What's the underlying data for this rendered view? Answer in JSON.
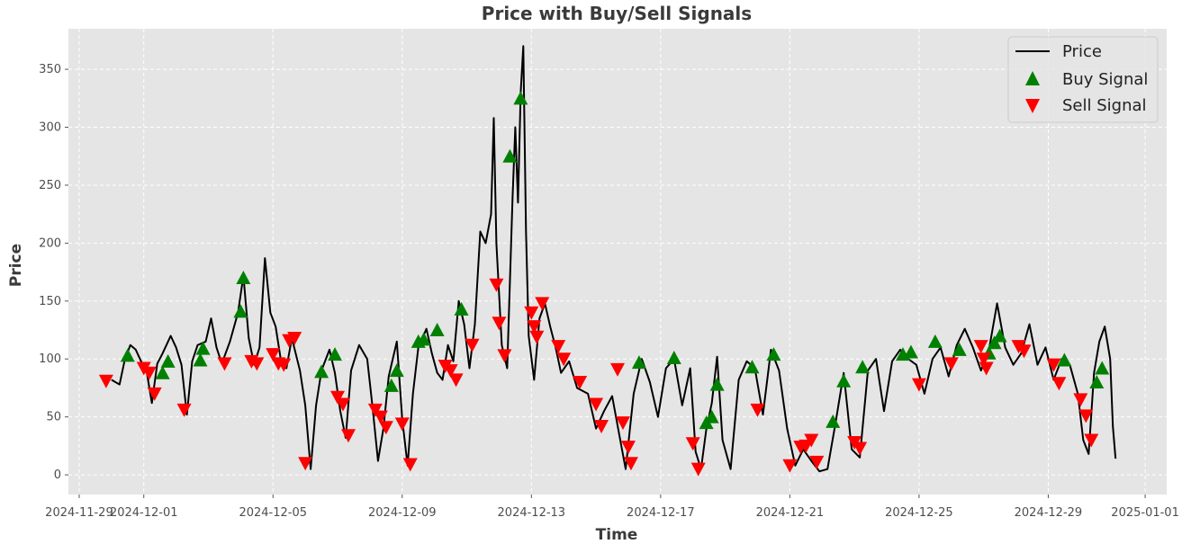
{
  "chart_data": {
    "type": "line",
    "title": "Price with Buy/Sell Signals",
    "xlabel": "Time",
    "ylabel": "Price",
    "xlim": [
      "2024-11-28T16:00",
      "2025-01-01T16:00"
    ],
    "ylim": [
      -17,
      385
    ],
    "x_ticks": [
      "2024-11-29",
      "2024-12-01",
      "2024-12-05",
      "2024-12-09",
      "2024-12-13",
      "2024-12-17",
      "2024-12-21",
      "2024-12-25",
      "2024-12-29",
      "2025-01-01"
    ],
    "y_ticks": [
      0,
      50,
      100,
      150,
      200,
      250,
      300,
      350
    ],
    "grid": true,
    "legend_position": "top-right",
    "colors": {
      "price": "#000000",
      "buy": "#008000",
      "sell": "#ff0000",
      "background": "#e5e5e5",
      "grid": "#ffffff"
    },
    "series": [
      {
        "name": "Price",
        "type": "line",
        "points": [
          [
            "2024-11-30T00:00",
            82
          ],
          [
            "2024-11-30T06:00",
            78
          ],
          [
            "2024-11-30T10:00",
            100
          ],
          [
            "2024-11-30T14:00",
            112
          ],
          [
            "2024-11-30T18:00",
            108
          ],
          [
            "2024-11-30T22:00",
            98
          ],
          [
            "2024-12-01T02:00",
            90
          ],
          [
            "2024-12-01T06:00",
            62
          ],
          [
            "2024-12-01T10:00",
            96
          ],
          [
            "2024-12-01T14:00",
            105
          ],
          [
            "2024-12-01T20:00",
            120
          ],
          [
            "2024-12-02T00:00",
            110
          ],
          [
            "2024-12-02T04:00",
            95
          ],
          [
            "2024-12-02T08:00",
            52
          ],
          [
            "2024-12-02T12:00",
            98
          ],
          [
            "2024-12-02T16:00",
            112
          ],
          [
            "2024-12-02T22:00",
            115
          ],
          [
            "2024-12-03T02:00",
            135
          ],
          [
            "2024-12-03T06:00",
            110
          ],
          [
            "2024-12-03T10:00",
            96
          ],
          [
            "2024-12-03T16:00",
            115
          ],
          [
            "2024-12-03T22:00",
            140
          ],
          [
            "2024-12-04T02:00",
            172
          ],
          [
            "2024-12-04T06:00",
            118
          ],
          [
            "2024-12-04T10:00",
            95
          ],
          [
            "2024-12-04T14:00",
            110
          ],
          [
            "2024-12-04T18:00",
            187
          ],
          [
            "2024-12-04T22:00",
            140
          ],
          [
            "2024-12-05T02:00",
            128
          ],
          [
            "2024-12-05T06:00",
            98
          ],
          [
            "2024-12-05T10:00",
            92
          ],
          [
            "2024-12-05T14:00",
            118
          ],
          [
            "2024-12-05T20:00",
            90
          ],
          [
            "2024-12-06T00:00",
            60
          ],
          [
            "2024-12-06T04:00",
            5
          ],
          [
            "2024-12-06T08:00",
            60
          ],
          [
            "2024-12-06T12:00",
            90
          ],
          [
            "2024-12-06T18:00",
            108
          ],
          [
            "2024-12-06T22:00",
            88
          ],
          [
            "2024-12-07T02:00",
            55
          ],
          [
            "2024-12-07T06:00",
            32
          ],
          [
            "2024-12-07T10:00",
            90
          ],
          [
            "2024-12-07T16:00",
            112
          ],
          [
            "2024-12-07T22:00",
            100
          ],
          [
            "2024-12-08T02:00",
            58
          ],
          [
            "2024-12-08T06:00",
            12
          ],
          [
            "2024-12-08T10:00",
            40
          ],
          [
            "2024-12-08T14:00",
            85
          ],
          [
            "2024-12-08T20:00",
            115
          ],
          [
            "2024-12-09T00:00",
            48
          ],
          [
            "2024-12-09T04:00",
            8
          ],
          [
            "2024-12-09T08:00",
            70
          ],
          [
            "2024-12-09T12:00",
            110
          ],
          [
            "2024-12-09T18:00",
            126
          ],
          [
            "2024-12-09T22:00",
            105
          ],
          [
            "2024-12-10T02:00",
            88
          ],
          [
            "2024-12-10T06:00",
            82
          ],
          [
            "2024-12-10T10:00",
            112
          ],
          [
            "2024-12-10T14:00",
            98
          ],
          [
            "2024-12-10T18:00",
            150
          ],
          [
            "2024-12-10T22:00",
            130
          ],
          [
            "2024-12-11T02:00",
            92
          ],
          [
            "2024-12-11T06:00",
            130
          ],
          [
            "2024-12-11T10:00",
            210
          ],
          [
            "2024-12-11T14:00",
            200
          ],
          [
            "2024-12-11T18:00",
            225
          ],
          [
            "2024-12-11T20:00",
            308
          ],
          [
            "2024-12-11T22:00",
            200
          ],
          [
            "2024-12-12T02:00",
            112
          ],
          [
            "2024-12-12T06:00",
            92
          ],
          [
            "2024-12-12T10:00",
            240
          ],
          [
            "2024-12-12T12:00",
            300
          ],
          [
            "2024-12-12T14:00",
            235
          ],
          [
            "2024-12-12T16:00",
            330
          ],
          [
            "2024-12-12T18:00",
            370
          ],
          [
            "2024-12-12T20:00",
            210
          ],
          [
            "2024-12-12T22:00",
            120
          ],
          [
            "2024-12-13T02:00",
            82
          ],
          [
            "2024-12-13T06:00",
            135
          ],
          [
            "2024-12-13T10:00",
            148
          ],
          [
            "2024-12-13T14:00",
            128
          ],
          [
            "2024-12-13T18:00",
            110
          ],
          [
            "2024-12-13T22:00",
            88
          ],
          [
            "2024-12-14T04:00",
            98
          ],
          [
            "2024-12-14T10:00",
            75
          ],
          [
            "2024-12-14T18:00",
            70
          ],
          [
            "2024-12-15T00:00",
            40
          ],
          [
            "2024-12-15T06:00",
            55
          ],
          [
            "2024-12-15T12:00",
            68
          ],
          [
            "2024-12-15T18:00",
            30
          ],
          [
            "2024-12-15T22:00",
            5
          ],
          [
            "2024-12-16T04:00",
            70
          ],
          [
            "2024-12-16T10:00",
            100
          ],
          [
            "2024-12-16T16:00",
            80
          ],
          [
            "2024-12-16T22:00",
            50
          ],
          [
            "2024-12-17T04:00",
            92
          ],
          [
            "2024-12-17T10:00",
            100
          ],
          [
            "2024-12-17T16:00",
            60
          ],
          [
            "2024-12-17T22:00",
            92
          ],
          [
            "2024-12-18T02:00",
            20
          ],
          [
            "2024-12-18T06:00",
            5
          ],
          [
            "2024-12-18T10:00",
            40
          ],
          [
            "2024-12-18T14:00",
            62
          ],
          [
            "2024-12-18T18:00",
            102
          ],
          [
            "2024-12-18T22:00",
            30
          ],
          [
            "2024-12-19T04:00",
            5
          ],
          [
            "2024-12-19T10:00",
            82
          ],
          [
            "2024-12-19T16:00",
            98
          ],
          [
            "2024-12-19T22:00",
            92
          ],
          [
            "2024-12-20T04:00",
            52
          ],
          [
            "2024-12-20T10:00",
            108
          ],
          [
            "2024-12-20T16:00",
            90
          ],
          [
            "2024-12-20T22:00",
            40
          ],
          [
            "2024-12-21T04:00",
            8
          ],
          [
            "2024-12-21T10:00",
            22
          ],
          [
            "2024-12-21T16:00",
            12
          ],
          [
            "2024-12-21T22:00",
            3
          ],
          [
            "2024-12-22T04:00",
            5
          ],
          [
            "2024-12-22T10:00",
            45
          ],
          [
            "2024-12-22T16:00",
            88
          ],
          [
            "2024-12-22T22:00",
            22
          ],
          [
            "2024-12-23T04:00",
            15
          ],
          [
            "2024-12-23T10:00",
            90
          ],
          [
            "2024-12-23T16:00",
            100
          ],
          [
            "2024-12-23T22:00",
            55
          ],
          [
            "2024-12-24T04:00",
            98
          ],
          [
            "2024-12-24T10:00",
            108
          ],
          [
            "2024-12-24T16:00",
            100
          ],
          [
            "2024-12-24T22:00",
            95
          ],
          [
            "2024-12-25T04:00",
            70
          ],
          [
            "2024-12-25T10:00",
            100
          ],
          [
            "2024-12-25T16:00",
            110
          ],
          [
            "2024-12-25T22:00",
            85
          ],
          [
            "2024-12-26T04:00",
            112
          ],
          [
            "2024-12-26T10:00",
            126
          ],
          [
            "2024-12-26T16:00",
            110
          ],
          [
            "2024-12-26T22:00",
            90
          ],
          [
            "2024-12-27T04:00",
            108
          ],
          [
            "2024-12-27T10:00",
            148
          ],
          [
            "2024-12-27T16:00",
            110
          ],
          [
            "2024-12-27T22:00",
            95
          ],
          [
            "2024-12-28T04:00",
            105
          ],
          [
            "2024-12-28T10:00",
            130
          ],
          [
            "2024-12-28T16:00",
            95
          ],
          [
            "2024-12-28T22:00",
            110
          ],
          [
            "2024-12-29T04:00",
            82
          ],
          [
            "2024-12-29T10:00",
            100
          ],
          [
            "2024-12-29T16:00",
            95
          ],
          [
            "2024-12-29T22:00",
            70
          ],
          [
            "2024-12-30T02:00",
            30
          ],
          [
            "2024-12-30T06:00",
            18
          ],
          [
            "2024-12-30T10:00",
            88
          ],
          [
            "2024-12-30T14:00",
            115
          ],
          [
            "2024-12-30T18:00",
            128
          ],
          [
            "2024-12-30T22:00",
            100
          ],
          [
            "2024-12-31T00:00",
            42
          ],
          [
            "2024-12-31T02:00",
            14
          ]
        ]
      },
      {
        "name": "Buy Signal",
        "type": "scatter",
        "marker": "triangle-up",
        "points": [
          [
            "2024-11-30T12:00",
            103
          ],
          [
            "2024-12-01T14:00",
            88
          ],
          [
            "2024-12-01T18:00",
            98
          ],
          [
            "2024-12-02T18:00",
            99
          ],
          [
            "2024-12-02T20:00",
            109
          ],
          [
            "2024-12-04T00:00",
            141
          ],
          [
            "2024-12-04T02:00",
            170
          ],
          [
            "2024-12-06T12:00",
            89
          ],
          [
            "2024-12-06T22:00",
            104
          ],
          [
            "2024-12-08T16:00",
            77
          ],
          [
            "2024-12-08T20:00",
            90
          ],
          [
            "2024-12-09T12:00",
            115
          ],
          [
            "2024-12-09T16:00",
            117
          ],
          [
            "2024-12-10T02:00",
            125
          ],
          [
            "2024-12-10T20:00",
            143
          ],
          [
            "2024-12-12T08:00",
            275
          ],
          [
            "2024-12-12T16:00",
            325
          ],
          [
            "2024-12-16T08:00",
            97
          ],
          [
            "2024-12-17T10:00",
            101
          ],
          [
            "2024-12-18T10:00",
            45
          ],
          [
            "2024-12-18T14:00",
            50
          ],
          [
            "2024-12-18T18:00",
            78
          ],
          [
            "2024-12-19T20:00",
            93
          ],
          [
            "2024-12-20T12:00",
            104
          ],
          [
            "2024-12-22T08:00",
            46
          ],
          [
            "2024-12-22T16:00",
            81
          ],
          [
            "2024-12-23T06:00",
            93
          ],
          [
            "2024-12-24T12:00",
            104
          ],
          [
            "2024-12-24T18:00",
            106
          ],
          [
            "2024-12-25T12:00",
            115
          ],
          [
            "2024-12-26T06:00",
            108
          ],
          [
            "2024-12-27T04:00",
            105
          ],
          [
            "2024-12-27T08:00",
            114
          ],
          [
            "2024-12-27T12:00",
            120
          ],
          [
            "2024-12-29T12:00",
            99
          ],
          [
            "2024-12-30T12:00",
            80
          ],
          [
            "2024-12-30T16:00",
            92
          ]
        ]
      },
      {
        "name": "Sell Signal",
        "type": "scatter",
        "marker": "triangle-down",
        "points": [
          [
            "2024-11-29T20:00",
            81
          ],
          [
            "2024-12-01T00:00",
            92
          ],
          [
            "2024-12-01T04:00",
            88
          ],
          [
            "2024-12-01T08:00",
            70
          ],
          [
            "2024-12-02T06:00",
            56
          ],
          [
            "2024-12-03T12:00",
            96
          ],
          [
            "2024-12-04T08:00",
            98
          ],
          [
            "2024-12-04T12:00",
            96
          ],
          [
            "2024-12-05T00:00",
            104
          ],
          [
            "2024-12-05T04:00",
            96
          ],
          [
            "2024-12-05T08:00",
            95
          ],
          [
            "2024-12-05T12:00",
            116
          ],
          [
            "2024-12-05T16:00",
            118
          ],
          [
            "2024-12-06T00:00",
            10
          ],
          [
            "2024-12-07T00:00",
            67
          ],
          [
            "2024-12-07T04:00",
            61
          ],
          [
            "2024-12-07T08:00",
            34
          ],
          [
            "2024-12-08T04:00",
            56
          ],
          [
            "2024-12-08T08:00",
            50
          ],
          [
            "2024-12-08T12:00",
            41
          ],
          [
            "2024-12-09T00:00",
            44
          ],
          [
            "2024-12-09T06:00",
            9
          ],
          [
            "2024-12-10T08:00",
            94
          ],
          [
            "2024-12-10T12:00",
            90
          ],
          [
            "2024-12-10T16:00",
            82
          ],
          [
            "2024-12-11T04:00",
            112
          ],
          [
            "2024-12-11T22:00",
            164
          ],
          [
            "2024-12-12T00:00",
            131
          ],
          [
            "2024-12-12T04:00",
            103
          ],
          [
            "2024-12-13T00:00",
            140
          ],
          [
            "2024-12-13T02:00",
            128
          ],
          [
            "2024-12-13T04:00",
            119
          ],
          [
            "2024-12-13T08:00",
            148
          ],
          [
            "2024-12-13T20:00",
            111
          ],
          [
            "2024-12-14T00:00",
            100
          ],
          [
            "2024-12-14T12:00",
            80
          ],
          [
            "2024-12-15T00:00",
            61
          ],
          [
            "2024-12-15T04:00",
            42
          ],
          [
            "2024-12-15T16:00",
            91
          ],
          [
            "2024-12-15T20:00",
            45
          ],
          [
            "2024-12-16T00:00",
            24
          ],
          [
            "2024-12-16T02:00",
            10
          ],
          [
            "2024-12-18T00:00",
            27
          ],
          [
            "2024-12-18T04:00",
            5
          ],
          [
            "2024-12-20T00:00",
            56
          ],
          [
            "2024-12-21T00:00",
            8
          ],
          [
            "2024-12-21T08:00",
            24
          ],
          [
            "2024-12-21T12:00",
            25
          ],
          [
            "2024-12-21T16:00",
            30
          ],
          [
            "2024-12-21T20:00",
            11
          ],
          [
            "2024-12-23T00:00",
            28
          ],
          [
            "2024-12-23T04:00",
            23
          ],
          [
            "2024-12-25T00:00",
            78
          ],
          [
            "2024-12-26T00:00",
            96
          ],
          [
            "2024-12-26T22:00",
            111
          ],
          [
            "2024-12-27T00:00",
            100
          ],
          [
            "2024-12-27T02:00",
            92
          ],
          [
            "2024-12-28T02:00",
            111
          ],
          [
            "2024-12-28T06:00",
            107
          ],
          [
            "2024-12-29T04:00",
            95
          ],
          [
            "2024-12-29T08:00",
            79
          ],
          [
            "2024-12-30T00:00",
            65
          ],
          [
            "2024-12-30T04:00",
            51
          ],
          [
            "2024-12-30T08:00",
            30
          ]
        ]
      }
    ]
  }
}
